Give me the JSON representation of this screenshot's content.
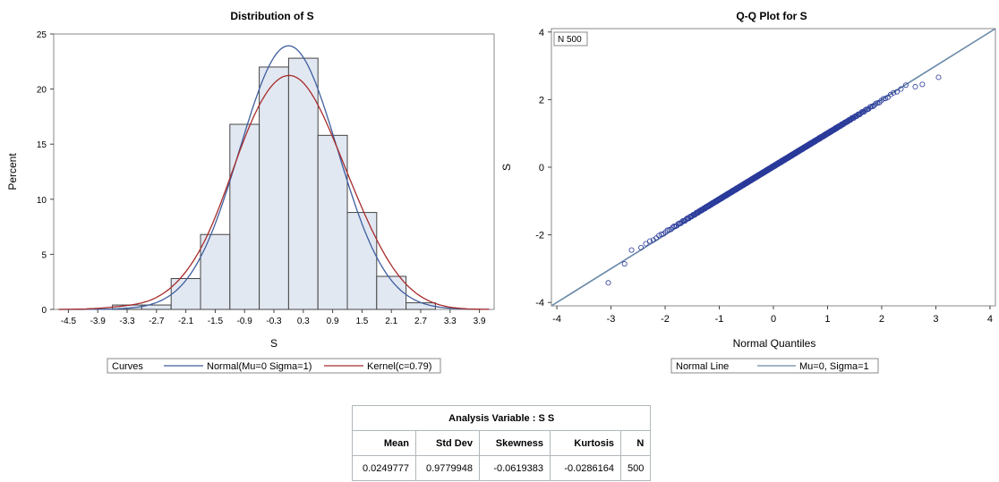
{
  "chart_data": [
    {
      "type": "bar",
      "title": "Distribution of S",
      "xlabel": "S",
      "ylabel": "Percent",
      "xlim": [
        -4.8,
        4.2
      ],
      "ylim": [
        0,
        25
      ],
      "grid": false,
      "x_ticks": [
        "-4.5",
        "-3.9",
        "-3.3",
        "-2.7",
        "-2.1",
        "-1.5",
        "-0.9",
        "-0.3",
        "0.3",
        "0.9",
        "1.5",
        "2.1",
        "2.7",
        "3.3",
        "3.9"
      ],
      "y_ticks": [
        "0",
        "5",
        "10",
        "15",
        "20",
        "25"
      ],
      "bins": [
        {
          "center": -3.3,
          "value": 0.4
        },
        {
          "center": -2.7,
          "value": 0.4
        },
        {
          "center": -2.1,
          "value": 2.8
        },
        {
          "center": -1.5,
          "value": 6.8
        },
        {
          "center": -0.9,
          "value": 16.8
        },
        {
          "center": -0.3,
          "value": 22.0
        },
        {
          "center": 0.3,
          "value": 22.8
        },
        {
          "center": 0.9,
          "value": 15.8
        },
        {
          "center": 1.5,
          "value": 8.8
        },
        {
          "center": 2.1,
          "value": 3.0
        },
        {
          "center": 2.7,
          "value": 0.6
        }
      ],
      "bin_width": 0.6,
      "bar_color": "#e2e8f2",
      "curves": [
        {
          "name": "Normal(Mu=0 Sigma=1)",
          "color": "#3e5e9e",
          "mu": 0,
          "sigma": 1
        },
        {
          "name": "Kernel(c=0.79)",
          "color": "#a72c2c"
        }
      ],
      "legend": {
        "title": "Curves",
        "placement": "bottom"
      }
    },
    {
      "type": "scatter",
      "title": "Q-Q Plot for S",
      "xlabel": "Normal Quantiles",
      "ylabel": "S",
      "xlim": [
        -4.1,
        4.1
      ],
      "ylim": [
        -4.1,
        4.1
      ],
      "x_ticks": [
        "-4",
        "-3",
        "-2",
        "-1",
        "0",
        "1",
        "2",
        "3",
        "4"
      ],
      "y_ticks": [
        "-4",
        "-2",
        "0",
        "2",
        "4"
      ],
      "inset": "N 500",
      "n": 500,
      "line": {
        "name": "Mu=0, Sigma=1",
        "color": "#6a8aa8",
        "intercept": 0,
        "slope": 1
      },
      "marker_color": "#2a3a9a",
      "outliers": [
        {
          "x": -3.05,
          "y": -3.42
        },
        {
          "x": -2.75,
          "y": -2.86
        },
        {
          "x": -2.62,
          "y": -2.45
        },
        {
          "x": 2.62,
          "y": 2.38
        },
        {
          "x": 2.75,
          "y": 2.45
        },
        {
          "x": 3.05,
          "y": 2.66
        }
      ],
      "legend": {
        "title": "Normal Line",
        "placement": "bottom"
      }
    }
  ],
  "table": {
    "caption": "Analysis Variable : S S",
    "headers": [
      "Mean",
      "Std Dev",
      "Skewness",
      "Kurtosis",
      "N"
    ],
    "row": [
      "0.0249777",
      "0.9779948",
      "-0.0619383",
      "-0.0286164",
      "500"
    ]
  }
}
